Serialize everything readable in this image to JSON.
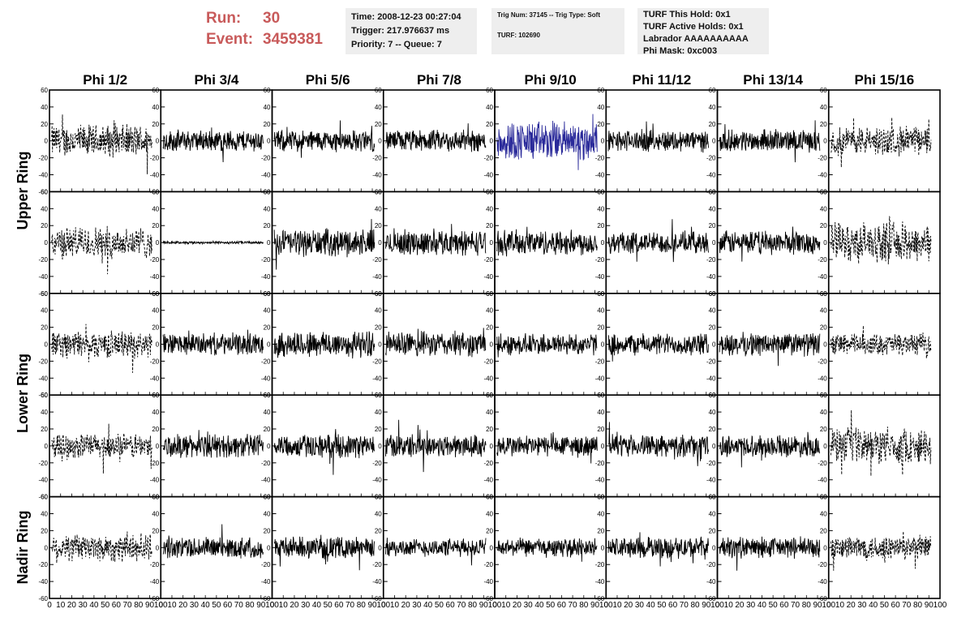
{
  "header": {
    "run_label": "Run:",
    "run_value": "30",
    "event_label": "Event:",
    "event_value": "3459381"
  },
  "info_time": {
    "time": "Time: 2008-12-23 00:27:04",
    "trigger": "Trigger: 217.976637 ms",
    "priority": "Priority: 7 -- Queue: 7"
  },
  "info_trig": {
    "trig": "Trig Num: 37145 -- Trig Type: Soft",
    "turf": "TURF: 102690"
  },
  "info_turf": {
    "this_hold": "TURF This Hold: 0x1",
    "active_holds": "TURF Active Holds: 0x1",
    "labrador": "Labrador AAAAAAAAAA",
    "phi_mask": "Phi Mask: 0xc003"
  },
  "rings": [
    "Upper Ring",
    "Lower Ring",
    "Nadir Ring"
  ],
  "colors": {
    "trace": "#000000",
    "highlight": "#2a2a9a",
    "header": "#c85a5a",
    "box_bg": "#eeeeee"
  },
  "chart_data": {
    "type": "line",
    "columns": [
      "Phi 1/2",
      "Phi 3/4",
      "Phi 5/6",
      "Phi 7/8",
      "Phi 9/10",
      "Phi 11/12",
      "Phi 13/14",
      "Phi 15/16"
    ],
    "rows": 5,
    "xlim": [
      0,
      100
    ],
    "ylim": [
      -60,
      60
    ],
    "x_ticks": [
      0,
      10,
      20,
      30,
      40,
      50,
      60,
      70,
      80,
      90,
      100
    ],
    "y_ticks": [
      -60,
      -40,
      -20,
      0,
      20,
      40,
      60
    ],
    "dashed_columns": [
      "Phi 1/2",
      "Phi 15/16"
    ],
    "highlight_panel": {
      "row": 0,
      "column": "Phi 9/10"
    },
    "panel_amplitude": [
      [
        18,
        12,
        12,
        12,
        22,
        12,
        12,
        16
      ],
      [
        18,
        1.5,
        15,
        14,
        14,
        12,
        13,
        22
      ],
      [
        15,
        12,
        15,
        14,
        12,
        12,
        13,
        12
      ],
      [
        14,
        13,
        13,
        13,
        12,
        12,
        12,
        20
      ],
      [
        16,
        12,
        12,
        10,
        10,
        12,
        12,
        14
      ]
    ]
  }
}
